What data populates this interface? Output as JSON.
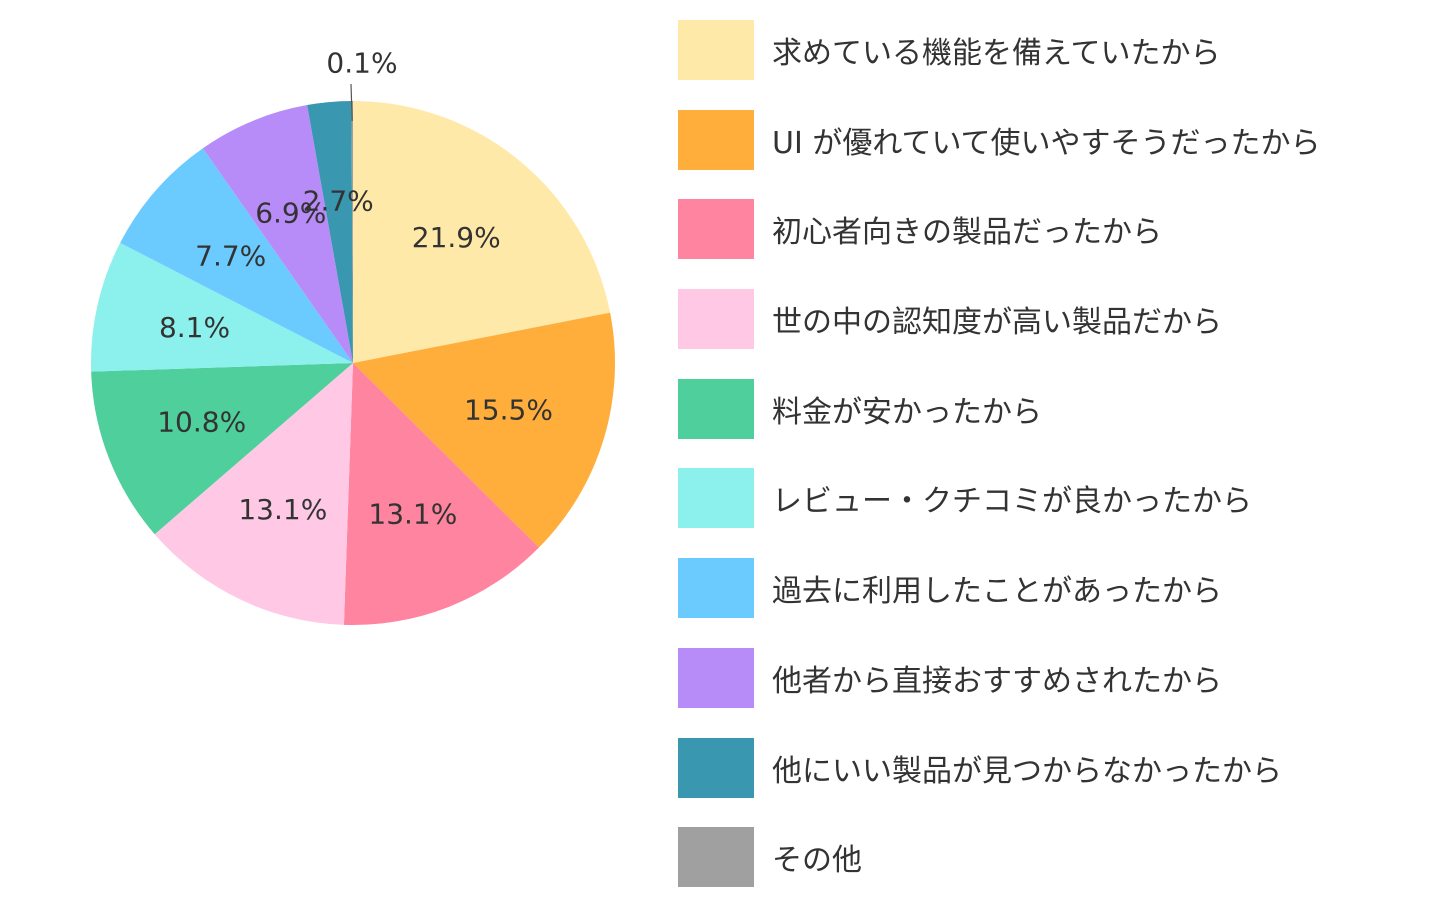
{
  "chart_data": {
    "type": "pie",
    "start_angle_deg": 0,
    "direction": "clockwise",
    "legend_position": "right",
    "slices": [
      {
        "label": "求めている機能を備えていたから",
        "value": 21.9,
        "value_label": "21.9%",
        "color": "#FFE9A8"
      },
      {
        "label": "UI が優れていて使いやすそうだったから",
        "value": 15.5,
        "value_label": "15.5%",
        "color": "#FFAE3C"
      },
      {
        "label": "初心者向きの製品だったから",
        "value": 13.1,
        "value_label": "13.1%",
        "color": "#FF849F"
      },
      {
        "label": "世の中の認知度が高い製品だから",
        "value": 13.1,
        "value_label": "13.1%",
        "color": "#FFC9E6"
      },
      {
        "label": "料金が安かったから",
        "value": 10.8,
        "value_label": "10.8%",
        "color": "#4ECF9C"
      },
      {
        "label": "レビュー・クチコミが良かったから",
        "value": 8.1,
        "value_label": "8.1%",
        "color": "#8CF0EC"
      },
      {
        "label": "過去に利用したことがあったから",
        "value": 7.7,
        "value_label": "7.7%",
        "color": "#6BCBFF"
      },
      {
        "label": "他者から直接おすすめされたから",
        "value": 6.9,
        "value_label": "6.9%",
        "color": "#B88CF8"
      },
      {
        "label": "他にいい製品が見つからなかったから",
        "value": 2.7,
        "value_label": "2.7%",
        "color": "#3A97B0"
      },
      {
        "label": "その他",
        "value": 0.1,
        "value_label": "0.1%",
        "color": "#A0A0A0"
      }
    ]
  }
}
